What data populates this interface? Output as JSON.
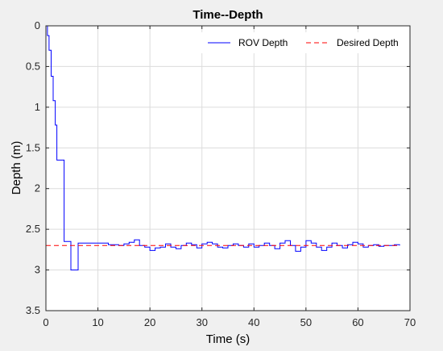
{
  "chart_data": {
    "type": "line",
    "title": "Time--Depth",
    "xlabel": "Time (s)",
    "ylabel": "Depth (m)",
    "xlim": [
      0,
      70
    ],
    "ylim": [
      0,
      3.5
    ],
    "y_reversed": true,
    "grid": true,
    "legend_position": "top-right",
    "xticks": [
      "0",
      "10",
      "20",
      "30",
      "40",
      "50",
      "60",
      "70"
    ],
    "yticks": [
      "0",
      "0.5",
      "1",
      "1.5",
      "2",
      "2.5",
      "3",
      "3.5"
    ],
    "series": [
      {
        "name": "ROV Depth",
        "color": "#0000ff",
        "step": true,
        "x": [
          0,
          0.3,
          0.6,
          1.0,
          1.4,
          1.8,
          2.1,
          3.5,
          4.8,
          6.2,
          8,
          10,
          12,
          14,
          15,
          16,
          17,
          18,
          19,
          20,
          21,
          22,
          23,
          24,
          25,
          26,
          27,
          28,
          29,
          30,
          31,
          32,
          33,
          34,
          35,
          36,
          37,
          38,
          39,
          40,
          41,
          42,
          43,
          44,
          45,
          46,
          47,
          48,
          49,
          50,
          51,
          52,
          53,
          54,
          55,
          56,
          57,
          58,
          59,
          60,
          61,
          62,
          63,
          64,
          65,
          66,
          67,
          68
        ],
        "y": [
          0,
          0.12,
          0.3,
          0.62,
          0.92,
          1.22,
          1.65,
          2.65,
          3.0,
          2.67,
          2.67,
          2.67,
          2.69,
          2.7,
          2.68,
          2.66,
          2.63,
          2.7,
          2.72,
          2.76,
          2.73,
          2.72,
          2.68,
          2.72,
          2.74,
          2.7,
          2.67,
          2.69,
          2.73,
          2.68,
          2.66,
          2.68,
          2.72,
          2.73,
          2.7,
          2.68,
          2.7,
          2.72,
          2.68,
          2.72,
          2.7,
          2.67,
          2.7,
          2.74,
          2.67,
          2.64,
          2.7,
          2.77,
          2.72,
          2.64,
          2.67,
          2.72,
          2.76,
          2.72,
          2.67,
          2.7,
          2.73,
          2.69,
          2.66,
          2.68,
          2.72,
          2.7,
          2.69,
          2.71,
          2.7,
          2.7,
          2.69,
          2.7
        ]
      },
      {
        "name": "Desired Depth",
        "color": "#ff0000",
        "dashed": true,
        "x": [
          0,
          68
        ],
        "y": [
          2.7,
          2.7
        ]
      }
    ]
  }
}
